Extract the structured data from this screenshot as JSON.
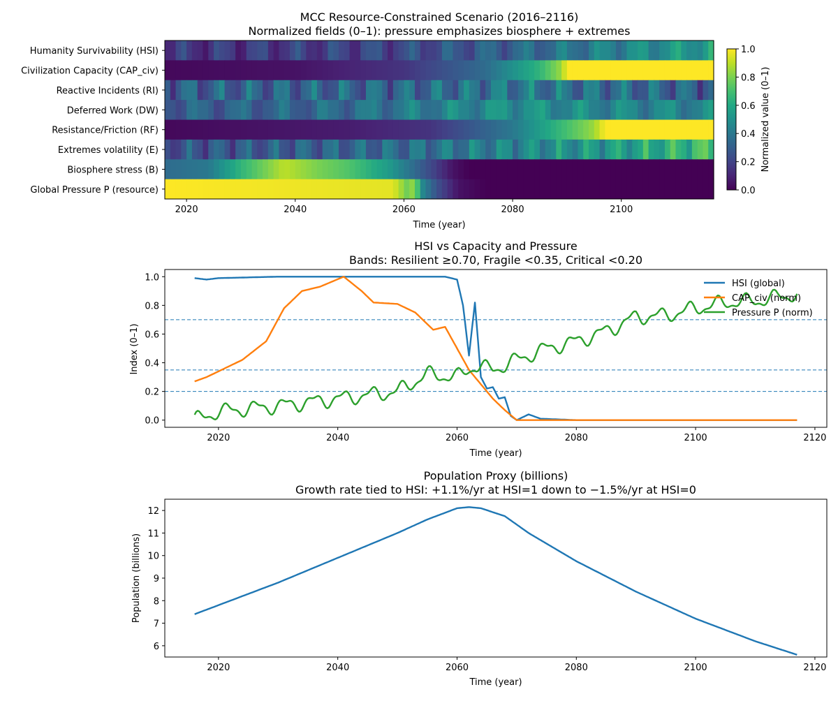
{
  "chart_data": [
    {
      "type": "heatmap",
      "title": "MCC Resource-Constrained Scenario (2016–2116)",
      "subtitle": "Normalized fields (0–1): pressure emphasizes biosphere + extremes",
      "xlabel": "Time (year)",
      "xlim": [
        2016,
        2117
      ],
      "xticks": [
        2020,
        2040,
        2060,
        2080,
        2100
      ],
      "rows": [
        {
          "label": "Humanity Survivability (HSI)",
          "pattern": "osc",
          "points": [
            [
              2016,
              0.15
            ],
            [
              2040,
              0.18
            ],
            [
              2060,
              0.22
            ],
            [
              2080,
              0.32
            ],
            [
              2100,
              0.45
            ],
            [
              2117,
              0.55
            ]
          ],
          "amp": 0.12,
          "freq": 0.9
        },
        {
          "label": "Civilization Capacity (CAP_civ)",
          "pattern": "smooth",
          "points": [
            [
              2016,
              0.02
            ],
            [
              2040,
              0.05
            ],
            [
              2060,
              0.15
            ],
            [
              2075,
              0.35
            ],
            [
              2085,
              0.65
            ],
            [
              2089,
              0.85
            ],
            [
              2090,
              1.0
            ],
            [
              2117,
              1.0
            ]
          ]
        },
        {
          "label": "Reactive Incidents (RI)",
          "pattern": "osc",
          "points": [
            [
              2016,
              0.3
            ],
            [
              2040,
              0.32
            ],
            [
              2060,
              0.33
            ],
            [
              2080,
              0.4
            ],
            [
              2100,
              0.35
            ],
            [
              2117,
              0.3
            ]
          ],
          "amp": 0.18,
          "freq": 1.1
        },
        {
          "label": "Deferred Work (DW)",
          "pattern": "osc",
          "points": [
            [
              2016,
              0.3
            ],
            [
              2040,
              0.32
            ],
            [
              2060,
              0.4
            ],
            [
              2080,
              0.5
            ],
            [
              2100,
              0.45
            ],
            [
              2117,
              0.45
            ]
          ],
          "amp": 0.12,
          "freq": 0.8
        },
        {
          "label": "Resistance/Friction (RF)",
          "pattern": "smooth",
          "points": [
            [
              2016,
              0.02
            ],
            [
              2050,
              0.08
            ],
            [
              2065,
              0.15
            ],
            [
              2080,
              0.4
            ],
            [
              2090,
              0.7
            ],
            [
              2095,
              0.85
            ],
            [
              2097,
              1.0
            ],
            [
              2117,
              1.0
            ]
          ]
        },
        {
          "label": "Extremes volatility (E)",
          "pattern": "osc",
          "points": [
            [
              2016,
              0.25
            ],
            [
              2040,
              0.3
            ],
            [
              2060,
              0.35
            ],
            [
              2080,
              0.45
            ],
            [
              2100,
              0.55
            ],
            [
              2117,
              0.7
            ]
          ],
          "amp": 0.15,
          "freq": 1.2
        },
        {
          "label": "Biosphere stress (B)",
          "pattern": "smooth",
          "points": [
            [
              2016,
              0.35
            ],
            [
              2024,
              0.4
            ],
            [
              2030,
              0.65
            ],
            [
              2038,
              0.9
            ],
            [
              2044,
              0.8
            ],
            [
              2050,
              0.72
            ],
            [
              2057,
              0.55
            ],
            [
              2063,
              0.3
            ],
            [
              2069,
              0.05
            ],
            [
              2072,
              0.0
            ],
            [
              2117,
              0.0
            ]
          ]
        },
        {
          "label": "Global Pressure P (resource)",
          "pattern": "smooth",
          "points": [
            [
              2016,
              1.0
            ],
            [
              2058,
              0.96
            ],
            [
              2061,
              0.75
            ],
            [
              2062,
              0.9
            ],
            [
              2063,
              0.5
            ],
            [
              2066,
              0.25
            ],
            [
              2070,
              0.05
            ],
            [
              2075,
              0.0
            ],
            [
              2117,
              0.0
            ]
          ]
        }
      ],
      "colorbar": {
        "label": "Normalized value (0–1)",
        "ticks": [
          "0.0",
          "0.2",
          "0.4",
          "0.6",
          "0.8",
          "1.0"
        ]
      }
    },
    {
      "type": "line",
      "title": "HSI vs Capacity and Pressure",
      "subtitle": "Bands: Resilient ≥0.70, Fragile <0.35, Critical <0.20",
      "xlabel": "Time (year)",
      "ylabel": "Index (0–1)",
      "xlim": [
        2011,
        2122
      ],
      "ylim": [
        -0.05,
        1.05
      ],
      "xticks": [
        2020,
        2040,
        2060,
        2080,
        2100,
        2120
      ],
      "yticks": [
        0.0,
        0.2,
        0.4,
        0.6,
        0.8,
        1.0
      ],
      "bands": [
        0.7,
        0.35,
        0.2
      ],
      "legend_position": "top-right",
      "series": [
        {
          "name": "HSI (global)",
          "color": "#1f77b4",
          "points": [
            [
              2016,
              0.99
            ],
            [
              2018,
              0.98
            ],
            [
              2020,
              0.99
            ],
            [
              2030,
              1.0
            ],
            [
              2058,
              1.0
            ],
            [
              2060,
              0.98
            ],
            [
              2061,
              0.8
            ],
            [
              2062,
              0.45
            ],
            [
              2063,
              0.82
            ],
            [
              2064,
              0.3
            ],
            [
              2065,
              0.22
            ],
            [
              2066,
              0.23
            ],
            [
              2067,
              0.15
            ],
            [
              2068,
              0.16
            ],
            [
              2069,
              0.03
            ],
            [
              2070,
              0.0
            ],
            [
              2072,
              0.04
            ],
            [
              2074,
              0.01
            ],
            [
              2080,
              0.0
            ],
            [
              2117,
              0.0
            ]
          ]
        },
        {
          "name": "CAP_civ (norm)",
          "color": "#ff7f0e",
          "points": [
            [
              2016,
              0.27
            ],
            [
              2018,
              0.3
            ],
            [
              2020,
              0.34
            ],
            [
              2024,
              0.42
            ],
            [
              2028,
              0.55
            ],
            [
              2031,
              0.78
            ],
            [
              2034,
              0.9
            ],
            [
              2037,
              0.93
            ],
            [
              2041,
              1.0
            ],
            [
              2044,
              0.9
            ],
            [
              2046,
              0.82
            ],
            [
              2050,
              0.81
            ],
            [
              2053,
              0.75
            ],
            [
              2056,
              0.63
            ],
            [
              2058,
              0.65
            ],
            [
              2060,
              0.5
            ],
            [
              2062,
              0.35
            ],
            [
              2064,
              0.25
            ],
            [
              2066,
              0.15
            ],
            [
              2068,
              0.07
            ],
            [
              2070,
              0.0
            ],
            [
              2117,
              0.0
            ]
          ]
        },
        {
          "name": "Pressure P (norm)",
          "color": "#2ca02c",
          "points": [
            [
              2016,
              0.0
            ],
            [
              2020,
              0.06
            ],
            [
              2030,
              0.1
            ],
            [
              2040,
              0.15
            ],
            [
              2050,
              0.2
            ],
            [
              2055,
              0.32
            ],
            [
              2060,
              0.3
            ],
            [
              2063,
              0.38
            ],
            [
              2066,
              0.35
            ],
            [
              2070,
              0.42
            ],
            [
              2075,
              0.5
            ],
            [
              2080,
              0.55
            ],
            [
              2085,
              0.62
            ],
            [
              2090,
              0.72
            ],
            [
              2095,
              0.73
            ],
            [
              2100,
              0.78
            ],
            [
              2105,
              0.82
            ],
            [
              2110,
              0.83
            ],
            [
              2117,
              0.88
            ]
          ],
          "amp": 0.06,
          "freq": 1.3
        }
      ]
    },
    {
      "type": "line",
      "title": "Population Proxy (billions)",
      "subtitle": "Growth rate tied to HSI: +1.1%/yr at HSI=1 down to −1.5%/yr at HSI=0",
      "xlabel": "Time (year)",
      "ylabel": "Population (billions)",
      "xlim": [
        2011,
        2122
      ],
      "ylim": [
        5.5,
        12.5
      ],
      "xticks": [
        2020,
        2040,
        2060,
        2080,
        2100,
        2120
      ],
      "yticks": [
        6,
        7,
        8,
        9,
        10,
        11,
        12
      ],
      "series": [
        {
          "name": "Population",
          "color": "#1f77b4",
          "points": [
            [
              2016,
              7.4
            ],
            [
              2020,
              7.8
            ],
            [
              2025,
              8.3
            ],
            [
              2030,
              8.8
            ],
            [
              2035,
              9.35
            ],
            [
              2040,
              9.9
            ],
            [
              2045,
              10.45
            ],
            [
              2050,
              11.0
            ],
            [
              2055,
              11.6
            ],
            [
              2060,
              12.1
            ],
            [
              2062,
              12.15
            ],
            [
              2064,
              12.1
            ],
            [
              2068,
              11.75
            ],
            [
              2072,
              11.0
            ],
            [
              2080,
              9.75
            ],
            [
              2090,
              8.4
            ],
            [
              2100,
              7.2
            ],
            [
              2110,
              6.2
            ],
            [
              2117,
              5.6
            ]
          ]
        }
      ]
    }
  ]
}
